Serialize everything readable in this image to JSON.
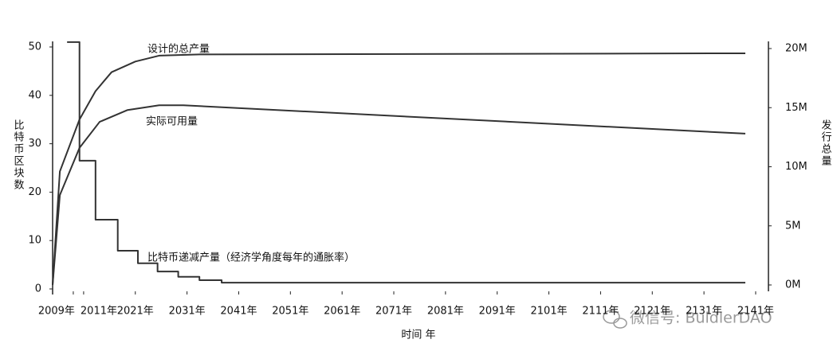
{
  "chart_data": {
    "type": "line",
    "ylabel": "比特币区块数",
    "y2label": "发行总量",
    "xlabel": "时间 年",
    "xlim": [
      2005,
      2139
    ],
    "xticks": [
      {
        "value": 2009,
        "label": "2009年"
      },
      {
        "value": 2011,
        "label": "2011年"
      },
      {
        "value": 2021,
        "label": "2021年"
      },
      {
        "value": 2031,
        "label": "2031年"
      },
      {
        "value": 2041,
        "label": "2041年"
      },
      {
        "value": 2051,
        "label": "2051年"
      },
      {
        "value": 2061,
        "label": "2061年"
      },
      {
        "value": 2071,
        "label": "2071年"
      },
      {
        "value": 2081,
        "label": "2081年"
      },
      {
        "value": 2091,
        "label": "2091年"
      },
      {
        "value": 2101,
        "label": "2101年"
      },
      {
        "value": 2111,
        "label": "2111年"
      },
      {
        "value": 2121,
        "label": "2121年"
      },
      {
        "value": 2131,
        "label": "2131年"
      },
      {
        "value": 2141,
        "label": "2141年"
      }
    ],
    "ylim": [
      0,
      50
    ],
    "yticks": [
      0,
      10,
      20,
      30,
      40,
      50
    ],
    "y2lim": [
      0,
      20
    ],
    "y2ticks": [
      {
        "value": 0,
        "label": "0M"
      },
      {
        "value": 5,
        "label": "5M"
      },
      {
        "value": 10,
        "label": "10M"
      },
      {
        "value": 15,
        "label": "15M"
      },
      {
        "value": 20,
        "label": "20M"
      }
    ],
    "series": [
      {
        "name": "设计的总产量",
        "color": "#333333",
        "axis": "y2",
        "x": [
          2005,
          2006.4,
          2010.2,
          2013.3,
          2016.4,
          2021,
          2025.6,
          2033.4,
          2139
        ],
        "values": [
          0,
          9.6,
          14,
          16.4,
          18,
          18.9,
          19.4,
          19.5,
          19.6
        ]
      },
      {
        "name": "实际可用量",
        "color": "#333333",
        "axis": "y2",
        "x": [
          2005,
          2006.4,
          2010.2,
          2014.1,
          2019.5,
          2025.6,
          2030.3,
          2139
        ],
        "values": [
          0,
          7.6,
          11.6,
          13.8,
          14.8,
          15.2,
          15.2,
          12.8
        ]
      },
      {
        "name": "比特币递减产量（经济学角度每年的通胀率）",
        "color": "#333333",
        "step": "post",
        "x": [
          2007.8,
          2010.2,
          2013.3,
          2017.6,
          2021.5,
          2025.3,
          2029.3,
          2033.4,
          2037.7,
          2139
        ],
        "values": [
          51,
          26.5,
          14.3,
          7.9,
          5.3,
          3.6,
          2.5,
          1.8,
          1.3,
          1.3
        ]
      }
    ],
    "watermark": "微信号: BuidlerDAO"
  }
}
